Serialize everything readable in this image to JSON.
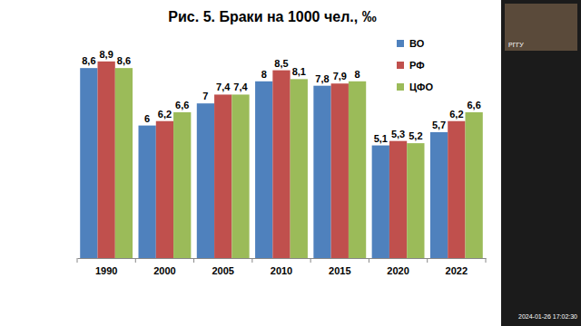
{
  "chart_data": {
    "type": "bar",
    "title": "Рис. 5.  Браки на 1000 чел., ‰",
    "categories": [
      "1990",
      "2000",
      "2005",
      "2010",
      "2015",
      "2020",
      "2022"
    ],
    "series": [
      {
        "name": "ВО",
        "color": "#4f81bd",
        "values": [
          8.6,
          6,
          7,
          8,
          7.8,
          5.1,
          5.7
        ],
        "value_labels": [
          "8,6",
          "6",
          "7",
          "8",
          "7,8",
          "5,1",
          "5,7"
        ]
      },
      {
        "name": "РФ",
        "color": "#c0504d",
        "values": [
          8.9,
          6.2,
          7.4,
          8.5,
          7.9,
          5.3,
          6.2
        ],
        "value_labels": [
          "8,9",
          "6,2",
          "7,4",
          "8,5",
          "7,9",
          "5,3",
          "6,2"
        ]
      },
      {
        "name": "ЦФО",
        "color": "#9bbb59",
        "values": [
          8.6,
          6.6,
          7.4,
          8.1,
          8,
          5.2,
          6.6
        ],
        "value_labels": [
          "8,6",
          "6,6",
          "7,4",
          "8,1",
          "8",
          "5,2",
          "6,6"
        ]
      }
    ],
    "ylim": [
      0,
      10
    ],
    "tick_labels": "x",
    "data_labels": true,
    "legend": "top-right",
    "annotations": [
      "РГГУ",
      "2024-01-26 17:02:30"
    ]
  }
}
